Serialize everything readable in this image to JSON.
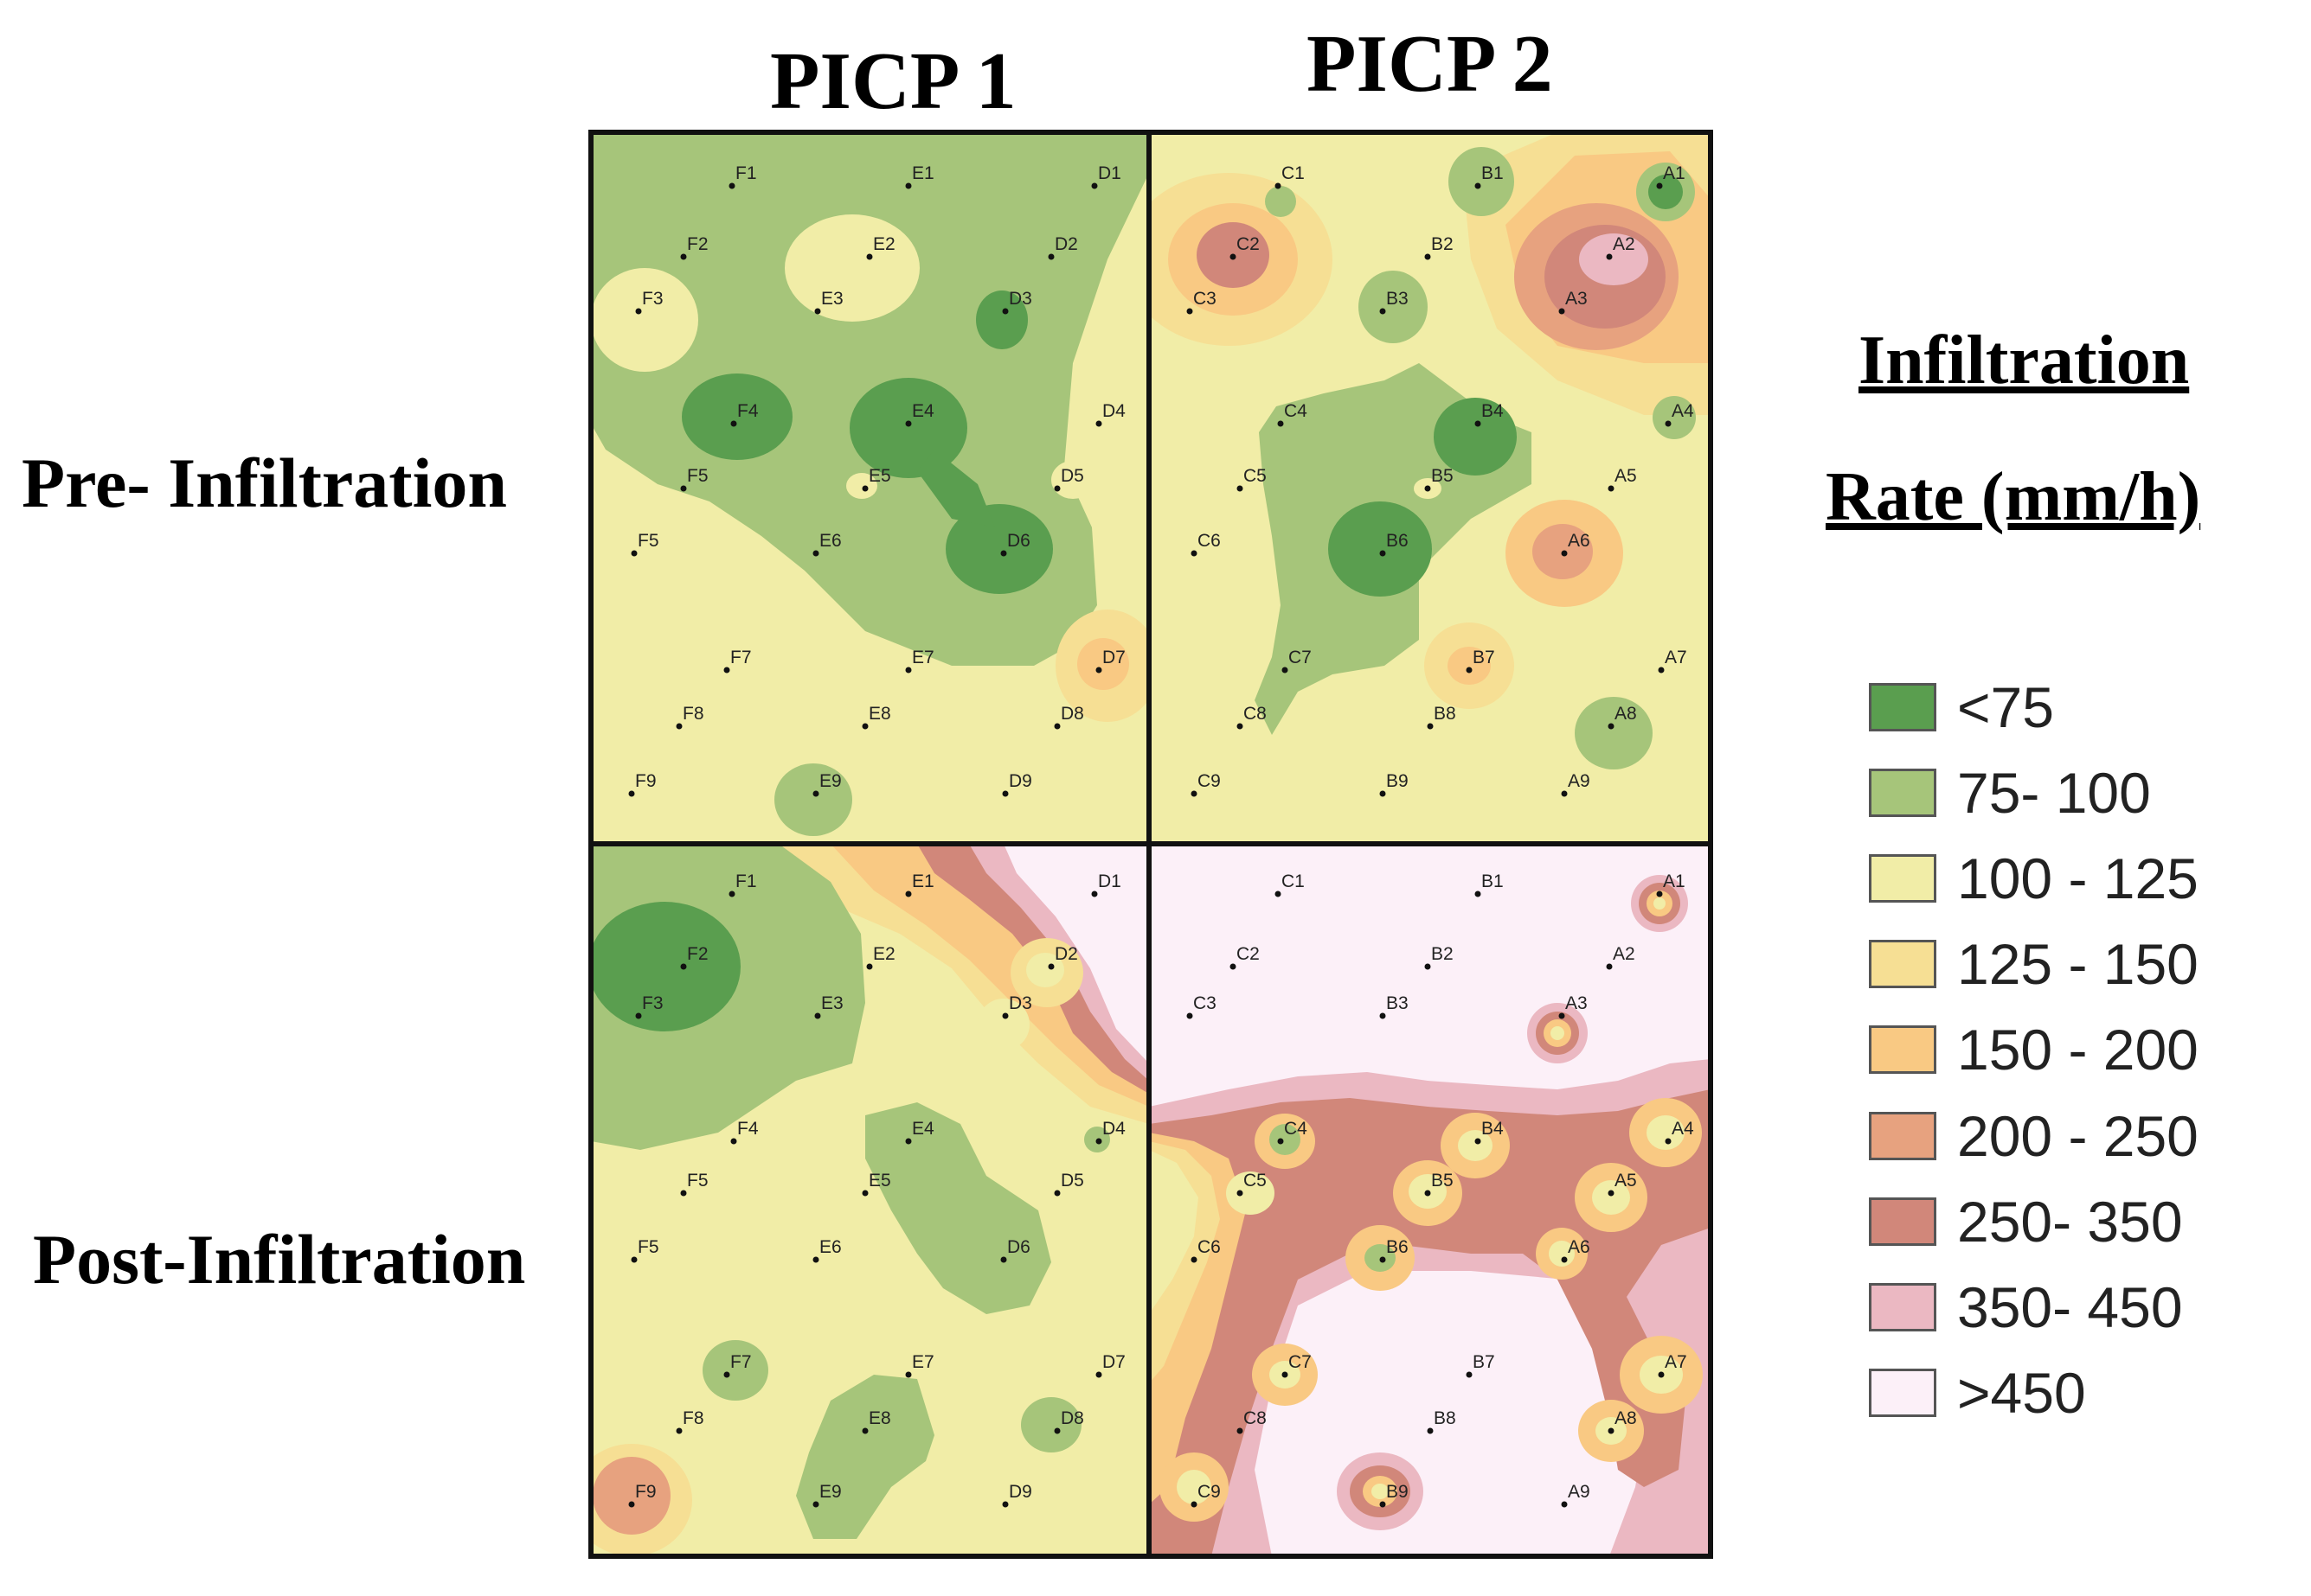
{
  "columns": [
    "PICP 1",
    "PICP 2"
  ],
  "rows": [
    "Pre- Infiltration",
    "Post-Infiltration"
  ],
  "legend": {
    "title_line1": "Infiltration",
    "title_line2": "Rate (mm/h)",
    "classes": [
      {
        "label": "<75",
        "color": "#5a9e4f"
      },
      {
        "label": "75- 100",
        "color": "#a6c57a"
      },
      {
        "label": "100 - 125",
        "color": "#f1eda7"
      },
      {
        "label": "125 - 150",
        "color": "#f6df94"
      },
      {
        "label": "150 - 200",
        "color": "#f9c983"
      },
      {
        "label": "200 - 250",
        "color": "#e7a27f"
      },
      {
        "label": "250- 350",
        "color": "#d1877a"
      },
      {
        "label": "350- 450",
        "color": "#ebb8c2"
      },
      {
        "label": ">450",
        "color": "#fcf0f8"
      }
    ]
  },
  "points_picp1": [
    "F1",
    "E1",
    "D1",
    "F2",
    "E2",
    "D2",
    "F3",
    "E3",
    "D3",
    "F4",
    "E4",
    "D4",
    "F5",
    "E5",
    "D5",
    "F5",
    "E6",
    "D6",
    "F7",
    "E7",
    "D7",
    "F8",
    "E8",
    "D8",
    "F9",
    "E9",
    "D9"
  ],
  "points_picp2": [
    "C1",
    "B1",
    "A1",
    "C2",
    "B2",
    "A2",
    "C3",
    "B3",
    "A3",
    "C4",
    "B4",
    "A4",
    "C5",
    "B5",
    "A5",
    "C6",
    "B6",
    "A6",
    "C7",
    "B7",
    "A7",
    "C8",
    "B8",
    "A8",
    "C9",
    "B9",
    "A9"
  ]
}
